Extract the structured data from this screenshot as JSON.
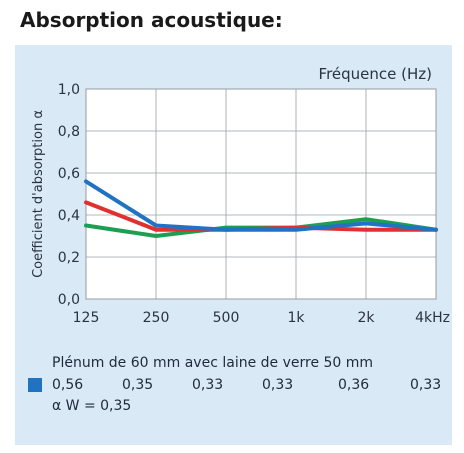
{
  "title": "Absorption acoustique:",
  "chart_data": {
    "type": "line",
    "xlabel": "Fréquence (Hz)",
    "ylabel": "Coefficient d'absorption α",
    "categories": [
      "125",
      "250",
      "500",
      "1k",
      "2k",
      "4kHz"
    ],
    "ylim": [
      0,
      1.0
    ],
    "yticks": [
      "0,0",
      "0,2",
      "0,4",
      "0,6",
      "0,8",
      "1,0"
    ],
    "grid": true,
    "series": [
      {
        "name": "Plénum de 60 mm avec laine de verre 50 mm",
        "color": "#1f73c2",
        "values": [
          0.56,
          0.35,
          0.33,
          0.33,
          0.36,
          0.33
        ]
      },
      {
        "color": "#e0302f",
        "values": [
          0.46,
          0.33,
          0.33,
          0.34,
          0.33,
          0.33
        ]
      },
      {
        "color": "#1e9e52",
        "values": [
          0.35,
          0.3,
          0.34,
          0.34,
          0.38,
          0.33
        ]
      }
    ]
  },
  "legend": {
    "title": "Plénum de 60 mm avec laine de verre 50 mm",
    "color": "#1f73c2",
    "values": [
      "0,56",
      "0,35",
      "0,33",
      "0,33",
      "0,36",
      "0,33"
    ],
    "alpha_w": "α W = 0,35"
  }
}
